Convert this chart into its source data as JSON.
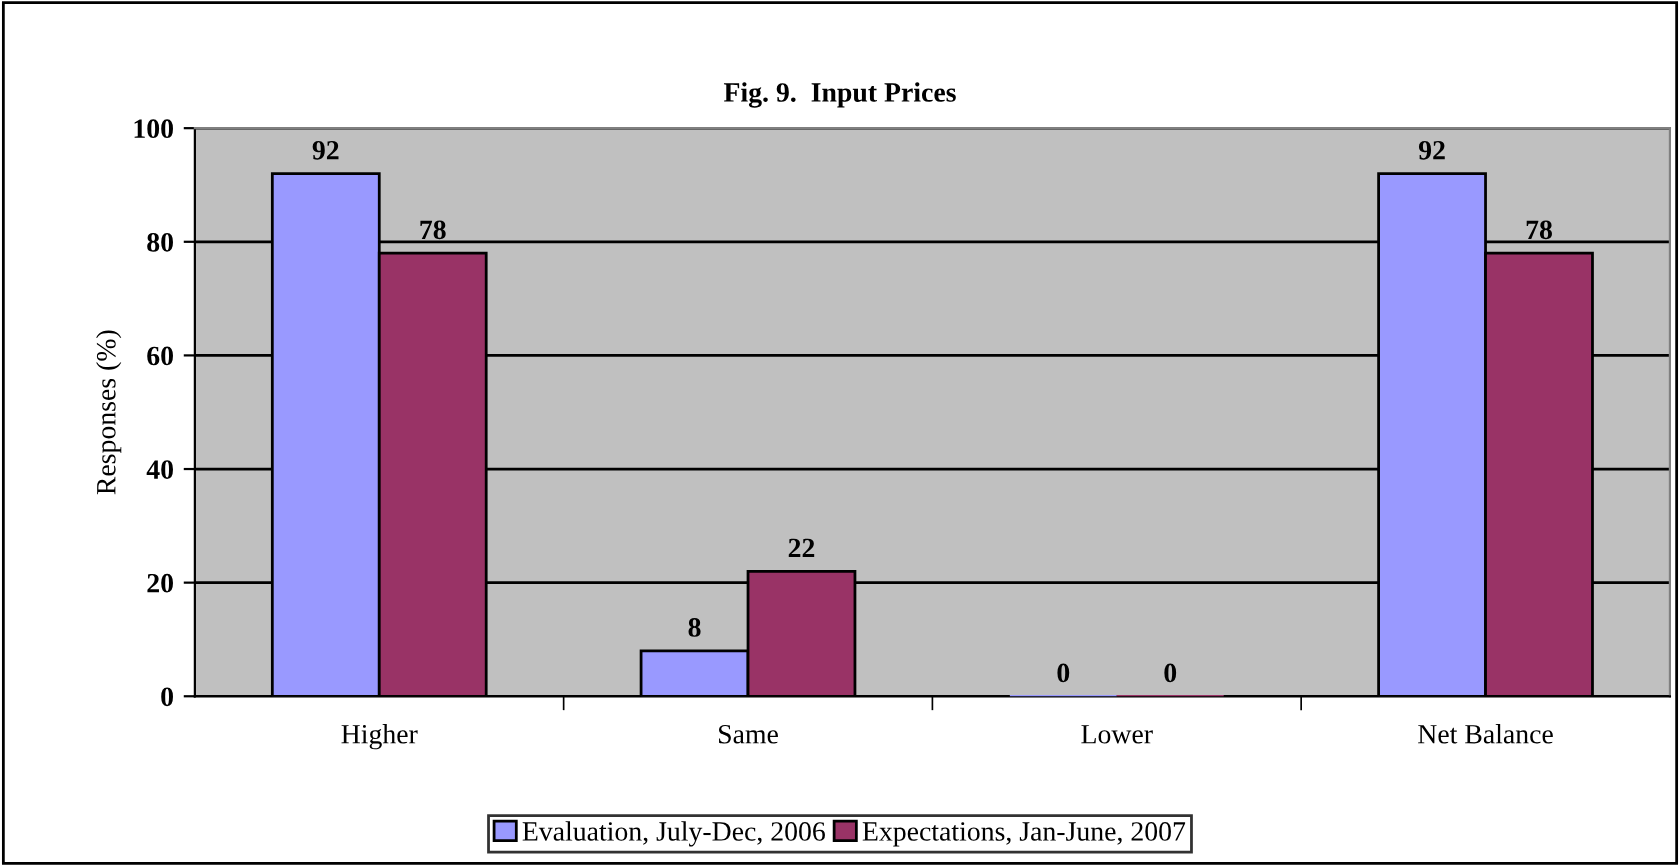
{
  "chart_data": {
    "type": "bar",
    "title": "Fig. 9.  Input Prices",
    "ylabel": "Responses (%)",
    "categories": [
      "Higher",
      "Same",
      "Lower",
      "Net Balance"
    ],
    "series": [
      {
        "name": "Evaluation, July-Dec, 2006",
        "color": "#9999ff",
        "values": [
          92,
          8,
          0,
          92
        ]
      },
      {
        "name": "Expectations, Jan-June, 2007",
        "color": "#993366",
        "values": [
          78,
          22,
          0,
          78
        ]
      }
    ],
    "ylim": [
      0,
      100
    ],
    "yticks": [
      0,
      20,
      40,
      60,
      80,
      100
    ],
    "grid": "y",
    "legend": "bottom",
    "data_labels": true
  }
}
